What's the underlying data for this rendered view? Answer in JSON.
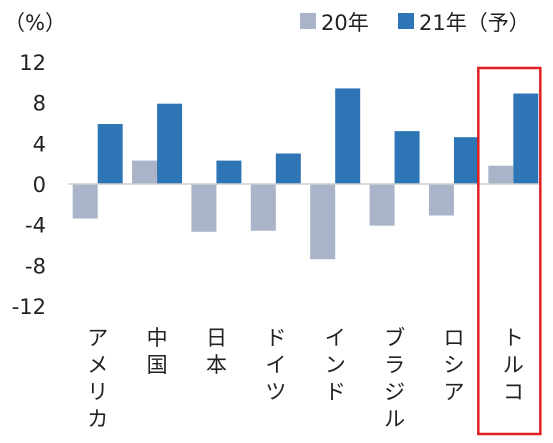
{
  "chart_data": {
    "type": "bar",
    "unit_label": "（%）",
    "categories": [
      "アメリカ",
      "中国",
      "日本",
      "ドイツ",
      "インド",
      "ブラジル",
      "ロシア",
      "トルコ"
    ],
    "series": [
      {
        "name": "20年",
        "color": "#aab4c8",
        "values": [
          -3.4,
          2.3,
          -4.7,
          -4.6,
          -7.4,
          -4.1,
          -3.1,
          1.8
        ]
      },
      {
        "name": "21年（予）",
        "color": "#2e75b6",
        "values": [
          5.9,
          7.9,
          2.3,
          3.0,
          9.4,
          5.2,
          4.6,
          8.9
        ]
      }
    ],
    "y_ticks": [
      "12",
      "8",
      "4",
      "0",
      "-4",
      "-8",
      "-12"
    ],
    "ylim": [
      -12,
      12
    ],
    "legend_position": "top-right",
    "highlight": {
      "category": "トルコ",
      "color": "#e02020"
    }
  }
}
